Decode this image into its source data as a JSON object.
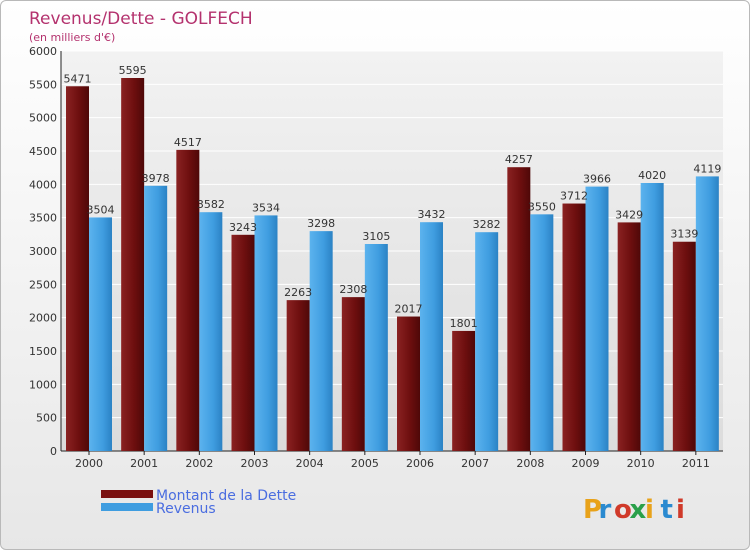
{
  "chart_data": {
    "type": "bar",
    "title": "Revenus/Dette - GOLFECH",
    "subtitle": "(en milliers d'€)",
    "categories": [
      "2000",
      "2001",
      "2002",
      "2003",
      "2004",
      "2005",
      "2006",
      "2007",
      "2008",
      "2009",
      "2010",
      "2011"
    ],
    "series": [
      {
        "name": "Montant de la Dette",
        "color": "#7a1010",
        "values": [
          5471,
          5595,
          4517,
          3243,
          2263,
          2308,
          2017,
          1801,
          4257,
          3712,
          3429,
          3139
        ]
      },
      {
        "name": "Revenus",
        "color": "#3f9de0",
        "values": [
          3504,
          3978,
          3582,
          3534,
          3298,
          3105,
          3432,
          3282,
          3550,
          3966,
          4020,
          4119
        ]
      }
    ],
    "ylim": [
      0,
      6000
    ],
    "yticks": [
      0,
      500,
      1000,
      1500,
      2000,
      2500,
      3000,
      3500,
      4000,
      4500,
      5000,
      5500,
      6000
    ],
    "grid": true,
    "legend_position": "bottom-left"
  },
  "logo": {
    "letters": [
      "P",
      "r",
      "o",
      "x",
      "i",
      "t",
      "i"
    ],
    "colors": [
      "#e8a21a",
      "#2a8ad0",
      "#d03a2a",
      "#2aa04a",
      "#e8a21a",
      "#2a8ad0",
      "#d03a2a"
    ]
  }
}
